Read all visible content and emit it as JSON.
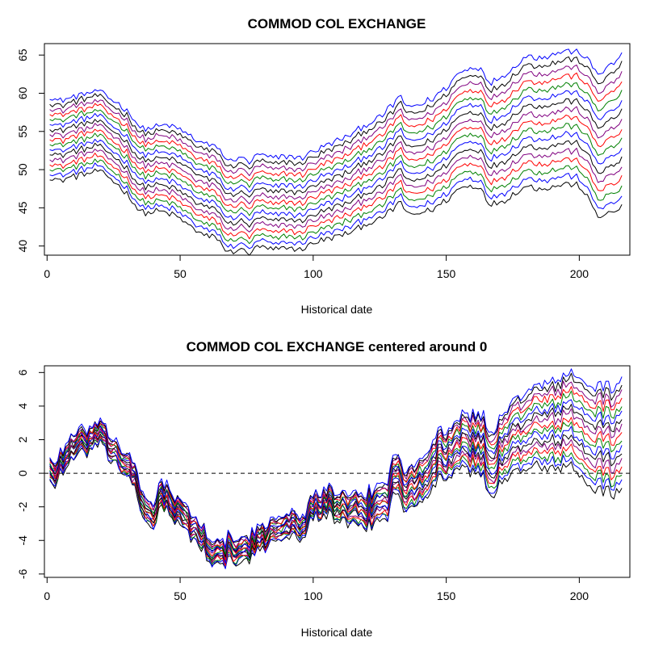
{
  "chart_data": [
    {
      "type": "line",
      "title": "COMMOD COL EXCHANGE",
      "xlabel": "Historical date",
      "ylabel": "",
      "xlim": [
        -1,
        219
      ],
      "ylim": [
        38.8,
        66.5
      ],
      "xticks": [
        0,
        50,
        100,
        150,
        200
      ],
      "yticks": [
        40,
        45,
        50,
        55,
        60,
        65
      ],
      "zero_line": false,
      "grid": false,
      "legend": "none",
      "x_range": [
        1,
        216
      ],
      "base_path": [
        [
          1,
          49.5
        ],
        [
          5,
          49.0
        ],
        [
          10,
          49.6
        ],
        [
          15,
          50.0
        ],
        [
          19,
          50.3
        ],
        [
          25,
          49.0
        ],
        [
          30,
          47.8
        ],
        [
          35,
          46.0
        ],
        [
          38,
          46.0
        ],
        [
          42,
          46.4
        ],
        [
          46,
          46.4
        ],
        [
          50,
          46.0
        ],
        [
          55,
          45.0
        ],
        [
          60,
          44.2
        ],
        [
          64,
          44.0
        ],
        [
          68,
          42.0
        ],
        [
          72,
          42.6
        ],
        [
          76,
          42.0
        ],
        [
          80,
          43.0
        ],
        [
          85,
          42.4
        ],
        [
          90,
          42.8
        ],
        [
          95,
          42.5
        ],
        [
          100,
          43.4
        ],
        [
          105,
          44.0
        ],
        [
          110,
          44.6
        ],
        [
          115,
          45.3
        ],
        [
          120,
          46.4
        ],
        [
          125,
          47.0
        ],
        [
          130,
          48.6
        ],
        [
          133,
          49.8
        ],
        [
          135,
          48.0
        ],
        [
          140,
          48.3
        ],
        [
          145,
          49.0
        ],
        [
          150,
          50.2
        ],
        [
          155,
          52.0
        ],
        [
          160,
          52.4
        ],
        [
          164,
          52.0
        ],
        [
          166,
          49.8
        ],
        [
          169,
          50.4
        ],
        [
          172,
          50.8
        ],
        [
          176,
          51.8
        ],
        [
          180,
          52.8
        ],
        [
          185,
          52.7
        ],
        [
          190,
          53.0
        ],
        [
          195,
          53.6
        ],
        [
          200,
          53.4
        ],
        [
          203,
          52.0
        ],
        [
          207,
          49.6
        ],
        [
          212,
          50.2
        ],
        [
          216,
          51.0
        ]
      ],
      "spread_top": [
        [
          1,
          10.0
        ],
        [
          30,
          10.0
        ],
        [
          35,
          9.5
        ],
        [
          60,
          9.0
        ],
        [
          100,
          9.0
        ],
        [
          150,
          10.5
        ],
        [
          180,
          12.0
        ],
        [
          200,
          12.0
        ],
        [
          216,
          14.0
        ]
      ],
      "spread_bottom": [
        [
          1,
          -0.5
        ],
        [
          25,
          -0.5
        ],
        [
          35,
          -1.5
        ],
        [
          60,
          -3.0
        ],
        [
          100,
          -3.0
        ],
        [
          140,
          -4.0
        ],
        [
          180,
          -5.0
        ],
        [
          216,
          -6.0
        ]
      ],
      "series_count": 17,
      "colors": [
        "#000000",
        "#0000ff",
        "#008000",
        "#ff0000",
        "#800080"
      ]
    },
    {
      "type": "line",
      "title": "COMMOD COL EXCHANGE centered around 0",
      "xlabel": "Historical date",
      "ylabel": "",
      "xlim": [
        -1,
        219
      ],
      "ylim": [
        -6.2,
        6.4
      ],
      "xticks": [
        0,
        50,
        100,
        150,
        200
      ],
      "yticks": [
        -6,
        -4,
        -2,
        0,
        2,
        4,
        6
      ],
      "zero_line": true,
      "grid": false,
      "legend": "none",
      "x_range": [
        1,
        216
      ],
      "base_path": [
        [
          1,
          0.0
        ],
        [
          3,
          -0.6
        ],
        [
          5,
          0.4
        ],
        [
          10,
          1.2
        ],
        [
          15,
          1.6
        ],
        [
          19,
          2.0
        ],
        [
          22,
          1.5
        ],
        [
          25,
          1.0
        ],
        [
          30,
          0.3
        ],
        [
          34,
          -0.8
        ],
        [
          36,
          -2.2
        ],
        [
          40,
          -2.3
        ],
        [
          43,
          -1.0
        ],
        [
          46,
          -1.6
        ],
        [
          50,
          -2.4
        ],
        [
          55,
          -3.0
        ],
        [
          60,
          -4.0
        ],
        [
          65,
          -4.8
        ],
        [
          68,
          -4.3
        ],
        [
          72,
          -4.5
        ],
        [
          76,
          -4.1
        ],
        [
          80,
          -3.8
        ],
        [
          85,
          -3.0
        ],
        [
          90,
          -2.6
        ],
        [
          95,
          -3.1
        ],
        [
          100,
          -1.6
        ],
        [
          105,
          -1.3
        ],
        [
          110,
          -1.6
        ],
        [
          115,
          -2.0
        ],
        [
          120,
          -1.7
        ],
        [
          125,
          -1.3
        ],
        [
          128,
          -0.9
        ],
        [
          131,
          0.7
        ],
        [
          134,
          -0.6
        ],
        [
          138,
          0.0
        ],
        [
          142,
          0.6
        ],
        [
          147,
          1.6
        ],
        [
          150,
          1.8
        ],
        [
          155,
          2.5
        ],
        [
          160,
          2.6
        ],
        [
          164,
          2.5
        ],
        [
          166,
          1.5
        ],
        [
          170,
          2.2
        ],
        [
          175,
          3.2
        ],
        [
          180,
          4.0
        ],
        [
          185,
          4.1
        ],
        [
          190,
          4.3
        ],
        [
          195,
          4.8
        ],
        [
          200,
          4.5
        ],
        [
          205,
          4.0
        ],
        [
          210,
          4.1
        ],
        [
          214,
          4.2
        ],
        [
          216,
          4.6
        ]
      ],
      "spread_top": [
        [
          1,
          1.0
        ],
        [
          25,
          1.0
        ],
        [
          40,
          0.6
        ],
        [
          100,
          0.3
        ],
        [
          150,
          0.8
        ],
        [
          200,
          1.2
        ],
        [
          216,
          1.0
        ]
      ],
      "spread_bottom": [
        [
          1,
          -0.3
        ],
        [
          25,
          -0.3
        ],
        [
          40,
          -0.8
        ],
        [
          100,
          -1.0
        ],
        [
          150,
          -2.0
        ],
        [
          180,
          -3.5
        ],
        [
          216,
          -5.5
        ]
      ],
      "series_count": 17,
      "colors": [
        "#000000",
        "#0000ff",
        "#008000",
        "#ff0000",
        "#800080"
      ]
    }
  ]
}
